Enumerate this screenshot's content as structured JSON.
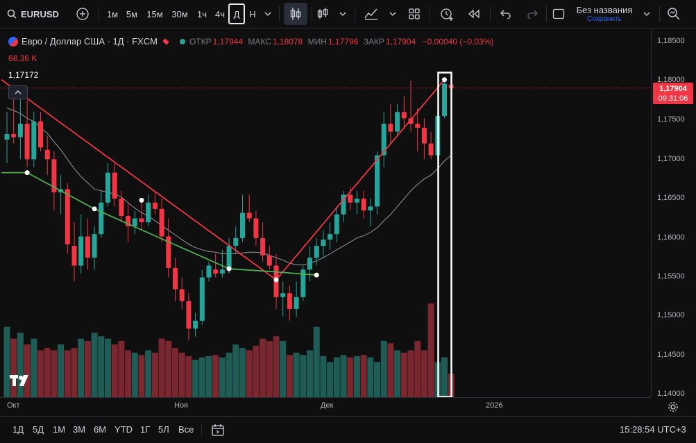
{
  "toolbar": {
    "symbol": "EURUSD",
    "intervals": [
      "1м",
      "5м",
      "15м",
      "30м",
      "1ч",
      "4ч",
      "Д",
      "Н"
    ],
    "active_interval": "Д",
    "layout_name": "Без названия",
    "save_label": "Сохранить"
  },
  "legend": {
    "title": "Евро / Доллар США · 1Д · FXCM",
    "open_label": "ОТКР",
    "open": "1,17944",
    "high_label": "МАКС",
    "high": "1,18078",
    "low_label": "МИН",
    "low": "1,17796",
    "close_label": "ЗАКР",
    "close": "1,17904",
    "change": "−0,00040 (−0,03%)",
    "volume": "68,36 K",
    "drawing_price": "1,17172"
  },
  "price_tag": {
    "price": "1,17904",
    "countdown": "09:31:06"
  },
  "bottombar": {
    "ranges": [
      "1Д",
      "5Д",
      "1М",
      "3М",
      "6М",
      "YTD",
      "1Г",
      "5Л",
      "Все"
    ],
    "clock": "15:28:54 UTC+3"
  },
  "colors": {
    "up": "#26a69a",
    "down": "#f23645",
    "trend_red": "#f23645",
    "trend_green": "#4caf50"
  },
  "chart_data": {
    "type": "candlestick",
    "x_labels": [
      "Окт",
      "Ноя",
      "Дек",
      "2026"
    ],
    "y_ticks": [
      "1,18500",
      "1,18000",
      "1,17500",
      "1,17000",
      "1,16500",
      "1,16000",
      "1,15500",
      "1,15000",
      "1,14500",
      "1,14000"
    ],
    "ylim": [
      1.1398,
      1.1866
    ],
    "candles": [
      {
        "o": 1.1725,
        "h": 1.176,
        "l": 1.1695,
        "c": 1.1732
      },
      {
        "o": 1.1732,
        "h": 1.1785,
        "l": 1.172,
        "c": 1.1728
      },
      {
        "o": 1.1728,
        "h": 1.178,
        "l": 1.17,
        "c": 1.1745
      },
      {
        "o": 1.1745,
        "h": 1.1775,
        "l": 1.169,
        "c": 1.17
      },
      {
        "o": 1.17,
        "h": 1.176,
        "l": 1.169,
        "c": 1.1748
      },
      {
        "o": 1.1748,
        "h": 1.176,
        "l": 1.171,
        "c": 1.1715
      },
      {
        "o": 1.1712,
        "h": 1.173,
        "l": 1.168,
        "c": 1.17
      },
      {
        "o": 1.17,
        "h": 1.171,
        "l": 1.1635,
        "c": 1.1658
      },
      {
        "o": 1.1658,
        "h": 1.168,
        "l": 1.163,
        "c": 1.1662
      },
      {
        "o": 1.1662,
        "h": 1.167,
        "l": 1.158,
        "c": 1.1592
      },
      {
        "o": 1.159,
        "h": 1.162,
        "l": 1.1545,
        "c": 1.1565
      },
      {
        "o": 1.1565,
        "h": 1.163,
        "l": 1.1555,
        "c": 1.1602
      },
      {
        "o": 1.1602,
        "h": 1.1625,
        "l": 1.156,
        "c": 1.1575
      },
      {
        "o": 1.1575,
        "h": 1.1615,
        "l": 1.156,
        "c": 1.1605
      },
      {
        "o": 1.1605,
        "h": 1.166,
        "l": 1.16,
        "c": 1.1645
      },
      {
        "o": 1.1645,
        "h": 1.1695,
        "l": 1.164,
        "c": 1.1683
      },
      {
        "o": 1.1683,
        "h": 1.1695,
        "l": 1.164,
        "c": 1.165
      },
      {
        "o": 1.165,
        "h": 1.166,
        "l": 1.162,
        "c": 1.1628
      },
      {
        "o": 1.1628,
        "h": 1.1645,
        "l": 1.1595,
        "c": 1.1615
      },
      {
        "o": 1.1615,
        "h": 1.1635,
        "l": 1.1605,
        "c": 1.1625
      },
      {
        "o": 1.1625,
        "h": 1.165,
        "l": 1.161,
        "c": 1.162
      },
      {
        "o": 1.162,
        "h": 1.1655,
        "l": 1.1615,
        "c": 1.1645
      },
      {
        "o": 1.1645,
        "h": 1.166,
        "l": 1.163,
        "c": 1.1637
      },
      {
        "o": 1.1637,
        "h": 1.165,
        "l": 1.1595,
        "c": 1.1602
      },
      {
        "o": 1.1602,
        "h": 1.1625,
        "l": 1.155,
        "c": 1.1562
      },
      {
        "o": 1.1562,
        "h": 1.1575,
        "l": 1.152,
        "c": 1.1535
      },
      {
        "o": 1.1535,
        "h": 1.155,
        "l": 1.151,
        "c": 1.152
      },
      {
        "o": 1.152,
        "h": 1.153,
        "l": 1.147,
        "c": 1.1485
      },
      {
        "o": 1.1485,
        "h": 1.1505,
        "l": 1.1475,
        "c": 1.1495
      },
      {
        "o": 1.1495,
        "h": 1.156,
        "l": 1.149,
        "c": 1.155
      },
      {
        "o": 1.155,
        "h": 1.157,
        "l": 1.1545,
        "c": 1.1565
      },
      {
        "o": 1.156,
        "h": 1.158,
        "l": 1.155,
        "c": 1.1555
      },
      {
        "o": 1.1555,
        "h": 1.1585,
        "l": 1.155,
        "c": 1.156
      },
      {
        "o": 1.156,
        "h": 1.16,
        "l": 1.1555,
        "c": 1.159
      },
      {
        "o": 1.159,
        "h": 1.1615,
        "l": 1.158,
        "c": 1.16
      },
      {
        "o": 1.16,
        "h": 1.1655,
        "l": 1.1595,
        "c": 1.1632
      },
      {
        "o": 1.1632,
        "h": 1.1655,
        "l": 1.162,
        "c": 1.1625
      },
      {
        "o": 1.1625,
        "h": 1.1635,
        "l": 1.159,
        "c": 1.16
      },
      {
        "o": 1.16,
        "h": 1.162,
        "l": 1.157,
        "c": 1.1578
      },
      {
        "o": 1.1578,
        "h": 1.159,
        "l": 1.156,
        "c": 1.1565
      },
      {
        "o": 1.1565,
        "h": 1.158,
        "l": 1.151,
        "c": 1.1525
      },
      {
        "o": 1.1525,
        "h": 1.1545,
        "l": 1.15,
        "c": 1.153
      },
      {
        "o": 1.153,
        "h": 1.154,
        "l": 1.1495,
        "c": 1.151
      },
      {
        "o": 1.151,
        "h": 1.1545,
        "l": 1.15,
        "c": 1.1525
      },
      {
        "o": 1.1525,
        "h": 1.1565,
        "l": 1.152,
        "c": 1.156
      },
      {
        "o": 1.156,
        "h": 1.159,
        "l": 1.1545,
        "c": 1.1575
      },
      {
        "o": 1.1575,
        "h": 1.16,
        "l": 1.1565,
        "c": 1.159
      },
      {
        "o": 1.159,
        "h": 1.161,
        "l": 1.1575,
        "c": 1.1598
      },
      {
        "o": 1.1598,
        "h": 1.162,
        "l": 1.1585,
        "c": 1.1605
      },
      {
        "o": 1.1605,
        "h": 1.164,
        "l": 1.1595,
        "c": 1.163
      },
      {
        "o": 1.163,
        "h": 1.166,
        "l": 1.162,
        "c": 1.1655
      },
      {
        "o": 1.1655,
        "h": 1.1665,
        "l": 1.1635,
        "c": 1.1645
      },
      {
        "o": 1.1645,
        "h": 1.166,
        "l": 1.163,
        "c": 1.165
      },
      {
        "o": 1.165,
        "h": 1.166,
        "l": 1.1625,
        "c": 1.1635
      },
      {
        "o": 1.1635,
        "h": 1.165,
        "l": 1.1615,
        "c": 1.164
      },
      {
        "o": 1.164,
        "h": 1.171,
        "l": 1.163,
        "c": 1.1705
      },
      {
        "o": 1.1705,
        "h": 1.176,
        "l": 1.169,
        "c": 1.1745
      },
      {
        "o": 1.1745,
        "h": 1.177,
        "l": 1.172,
        "c": 1.1735
      },
      {
        "o": 1.1735,
        "h": 1.177,
        "l": 1.173,
        "c": 1.176
      },
      {
        "o": 1.176,
        "h": 1.178,
        "l": 1.174,
        "c": 1.1752
      },
      {
        "o": 1.1752,
        "h": 1.18,
        "l": 1.1735,
        "c": 1.1745
      },
      {
        "o": 1.1745,
        "h": 1.1765,
        "l": 1.171,
        "c": 1.174
      },
      {
        "o": 1.174,
        "h": 1.1752,
        "l": 1.17,
        "c": 1.172
      },
      {
        "o": 1.172,
        "h": 1.1735,
        "l": 1.17,
        "c": 1.1705
      },
      {
        "o": 1.1705,
        "h": 1.176,
        "l": 1.17,
        "c": 1.1755
      },
      {
        "o": 1.1755,
        "h": 1.18,
        "l": 1.1752,
        "c": 1.1796
      },
      {
        "o": 1.17944,
        "h": 1.18078,
        "l": 1.17796,
        "c": 1.17904
      }
    ],
    "volume": [
      60,
      50,
      55,
      45,
      50,
      40,
      42,
      40,
      45,
      40,
      42,
      50,
      48,
      55,
      52,
      50,
      45,
      48,
      40,
      38,
      36,
      40,
      38,
      50,
      48,
      42,
      38,
      35,
      32,
      34,
      35,
      36,
      34,
      38,
      45,
      42,
      40,
      44,
      50,
      48,
      52,
      48,
      36,
      38,
      36,
      40,
      60,
      35,
      30,
      34,
      36,
      34,
      35,
      36,
      34,
      30,
      48,
      46,
      40,
      38,
      40,
      48,
      40,
      80,
      30,
      34,
      20
    ],
    "sma": [
      1.1765,
      1.1762,
      1.1758,
      1.1752,
      1.1748,
      1.174,
      1.1733,
      1.1722,
      1.1712,
      1.17,
      1.1688,
      1.1678,
      1.167,
      1.1662,
      1.166,
      1.1658,
      1.1656,
      1.1652,
      1.1645,
      1.1638,
      1.1632,
      1.1628,
      1.1622,
      1.1616,
      1.161,
      1.1604,
      1.1598,
      1.1592,
      1.1588,
      1.1585,
      1.1583,
      1.1582,
      1.158,
      1.158,
      1.158,
      1.1581,
      1.1582,
      1.1582,
      1.1581,
      1.1578,
      1.1575,
      1.1572,
      1.1568,
      1.1566,
      1.1566,
      1.1568,
      1.1571,
      1.1575,
      1.158,
      1.1585,
      1.159,
      1.1595,
      1.16,
      1.1603,
      1.1607,
      1.1613,
      1.1622,
      1.163,
      1.164,
      1.165,
      1.166,
      1.1668,
      1.1675,
      1.168,
      1.1688,
      1.1698,
      1.1705
    ]
  }
}
